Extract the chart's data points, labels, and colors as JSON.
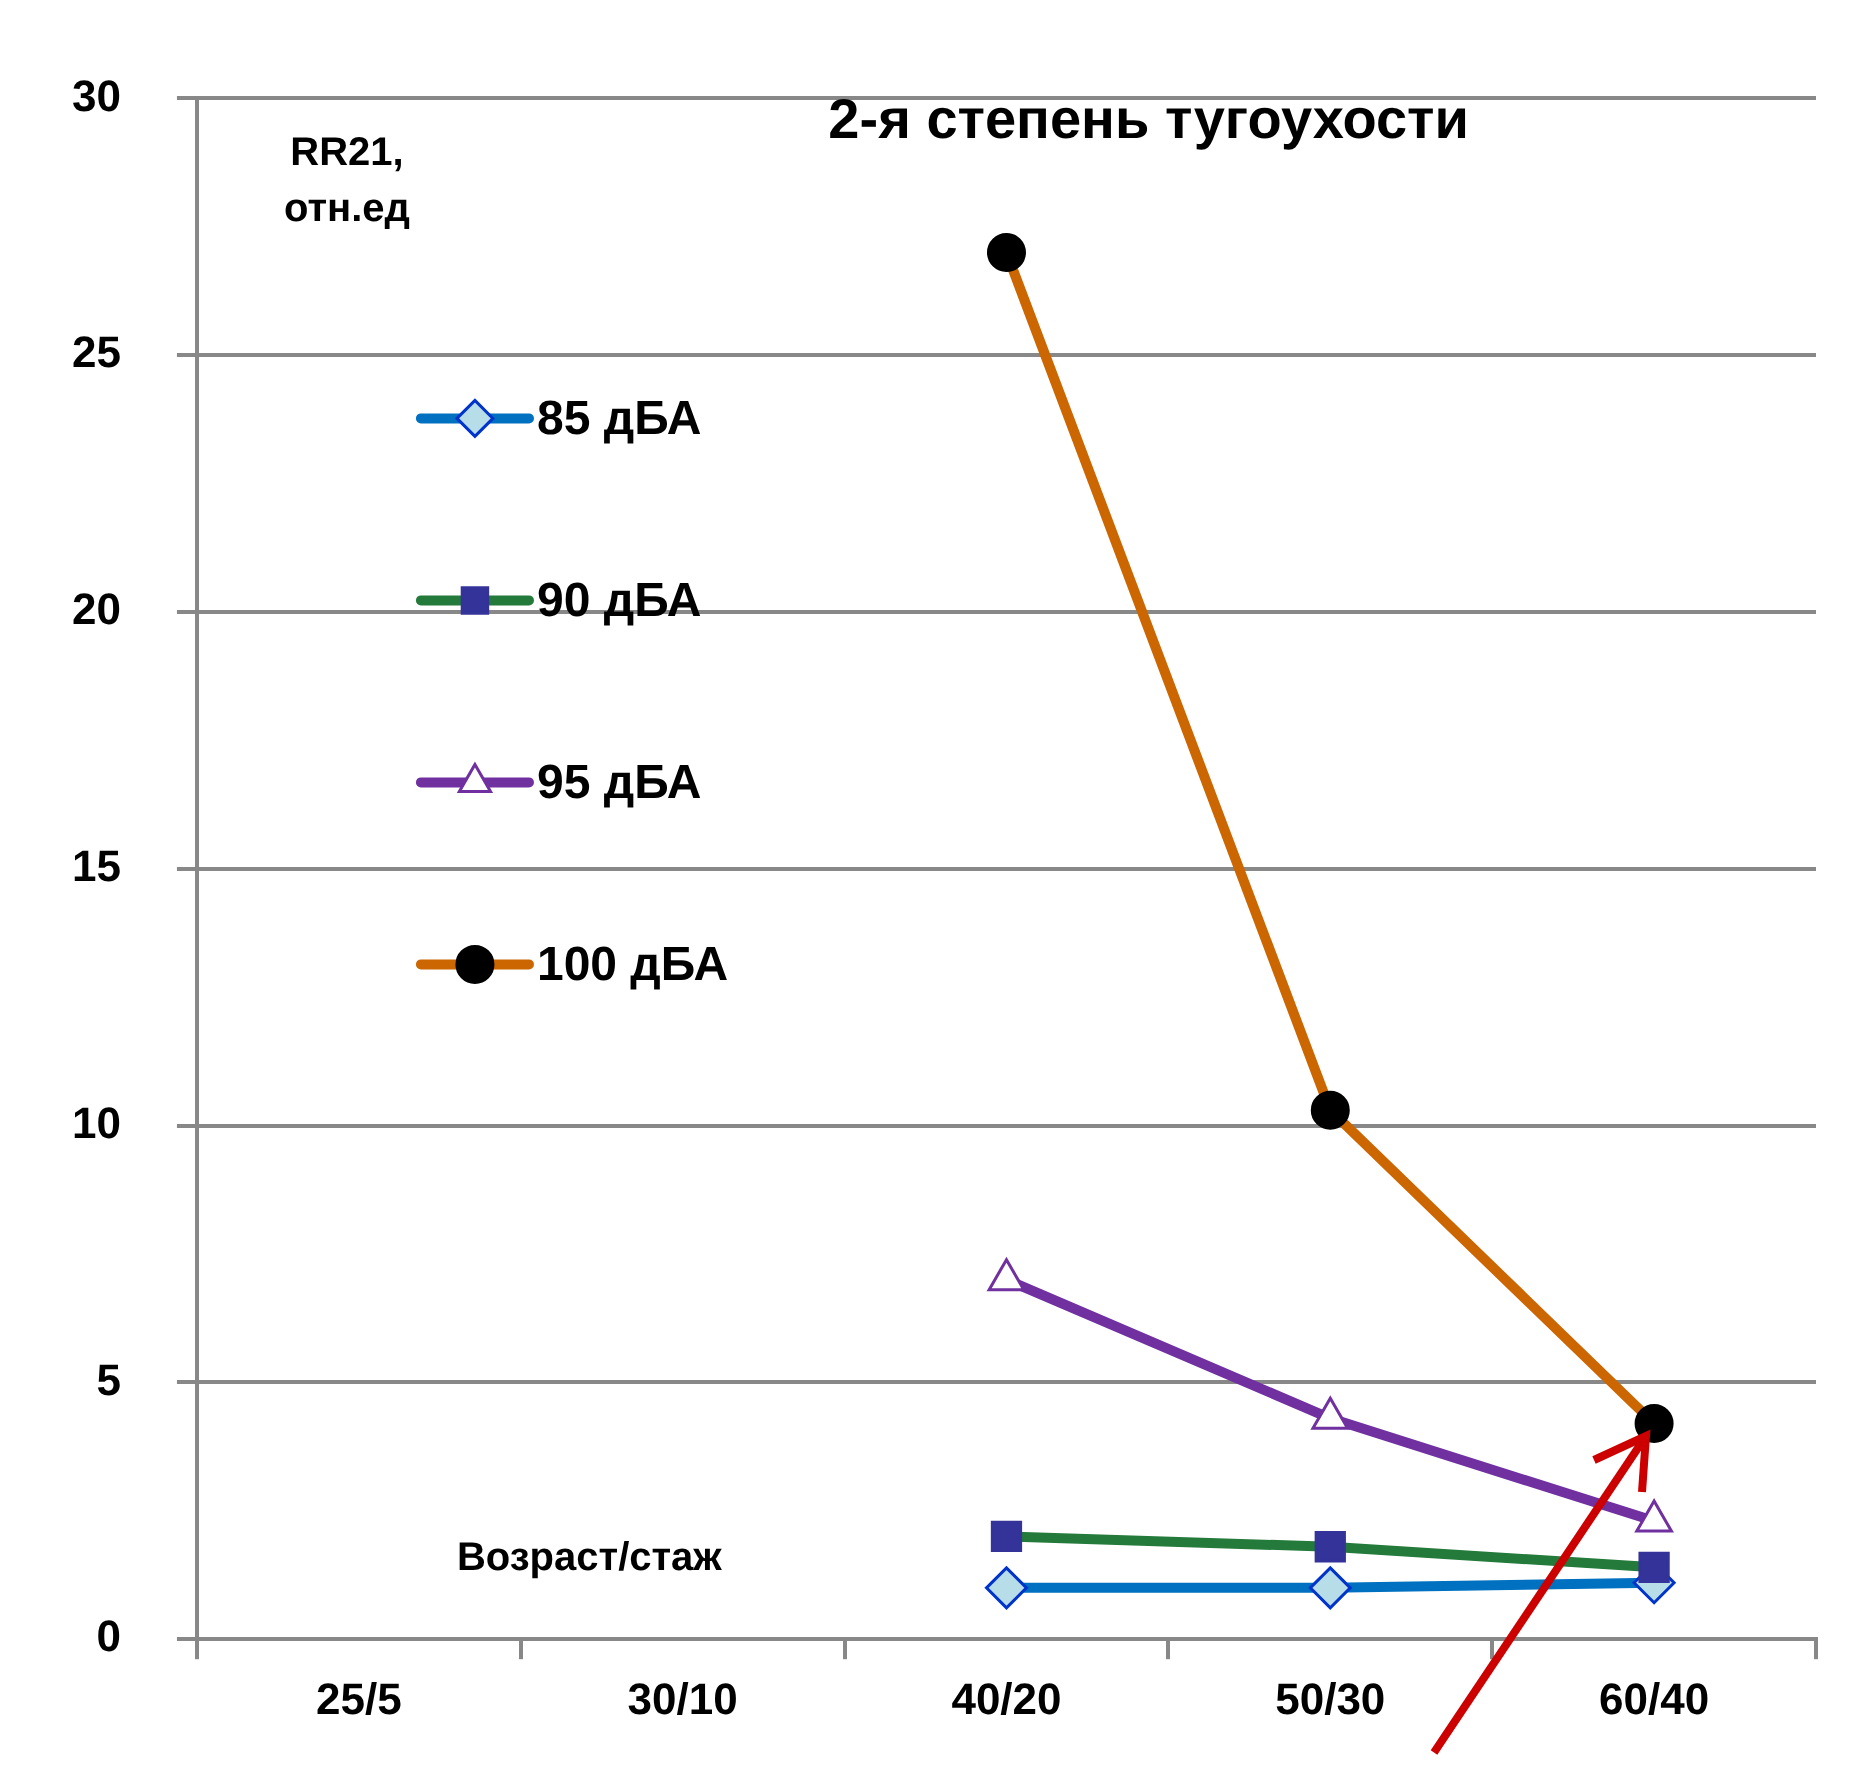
{
  "chart_data": {
    "type": "line",
    "title": "2-я степень тугоухости",
    "ylabel": "RR21,\nотн.ед",
    "xlabel": "Возраст/стаж",
    "categories": [
      "25/5",
      "30/10",
      "40/20",
      "50/30",
      "60/40"
    ],
    "series": [
      {
        "name": "85 дБА",
        "color": "#0070c0",
        "marker": "diamond",
        "values": [
          null,
          null,
          1.0,
          1.0,
          1.1
        ]
      },
      {
        "name": "90 дБА",
        "color": "#237a3a",
        "marker": "square",
        "values": [
          null,
          null,
          2.0,
          1.8,
          1.4
        ]
      },
      {
        "name": "95 дБА",
        "color": "#7030a0",
        "marker": "triangle",
        "values": [
          null,
          null,
          7.0,
          4.3,
          2.3
        ]
      },
      {
        "name": "100 дБА",
        "color": "#cc6600",
        "marker": "circle",
        "values": [
          null,
          null,
          27,
          10.3,
          4.2
        ]
      }
    ],
    "ylim": [
      0,
      30
    ],
    "yticks": [
      0,
      5,
      10,
      15,
      20,
      25,
      30
    ],
    "grid": "y",
    "legend": "top left",
    "line_style": "solid"
  }
}
